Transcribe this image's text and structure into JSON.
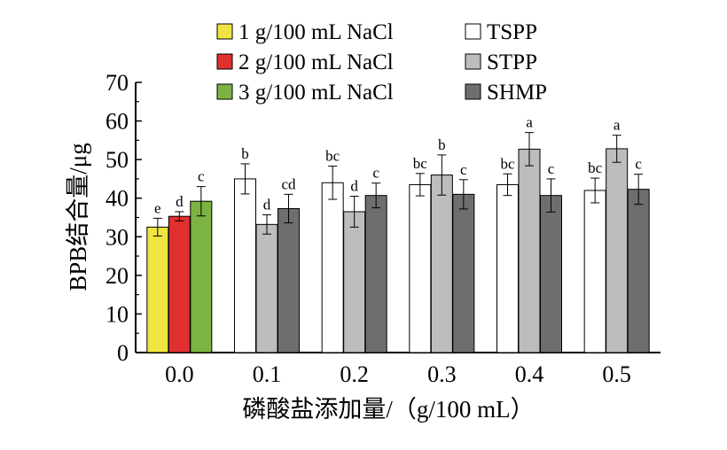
{
  "chart_data": {
    "type": "bar",
    "title": "",
    "xlabel": "磷酸盐添加量/（g/100 mL）",
    "ylabel": "BPB结合量/μg",
    "ylim": [
      0,
      70
    ],
    "yticks": [
      0,
      10,
      20,
      30,
      40,
      50,
      60,
      70
    ],
    "categories": [
      "0.0",
      "0.1",
      "0.2",
      "0.3",
      "0.4",
      "0.5"
    ],
    "grid": false,
    "legend_position": "top",
    "series": [
      {
        "name": "1 g/100 mL NaCl",
        "color": "#f0e442",
        "values": [
          32.5,
          null,
          null,
          null,
          null,
          null
        ],
        "errors": [
          2.3,
          null,
          null,
          null,
          null,
          null
        ],
        "labels": [
          "e",
          "",
          "",
          "",
          "",
          ""
        ]
      },
      {
        "name": "2 g/100 mL NaCl",
        "color": "#e03030",
        "values": [
          35.3,
          null,
          null,
          null,
          null,
          null
        ],
        "errors": [
          1.2,
          null,
          null,
          null,
          null,
          null
        ],
        "labels": [
          "d",
          "",
          "",
          "",
          "",
          ""
        ]
      },
      {
        "name": "3 g/100 mL NaCl",
        "color": "#7cb342",
        "values": [
          39.2,
          null,
          null,
          null,
          null,
          null
        ],
        "errors": [
          3.8,
          null,
          null,
          null,
          null,
          null
        ],
        "labels": [
          "c",
          "",
          "",
          "",
          "",
          ""
        ]
      },
      {
        "name": "TSPP",
        "color": "#ffffff",
        "values": [
          null,
          45.0,
          44.0,
          43.5,
          43.5,
          42.0
        ],
        "errors": [
          null,
          3.9,
          4.3,
          2.9,
          2.8,
          3.2
        ],
        "labels": [
          "",
          "b",
          "bc",
          "bc",
          "bc",
          "bc"
        ]
      },
      {
        "name": "STPP",
        "color": "#bdbdbd",
        "values": [
          null,
          33.2,
          36.5,
          46.0,
          52.7,
          52.8
        ],
        "errors": [
          null,
          2.5,
          4.0,
          5.2,
          4.3,
          3.5
        ],
        "labels": [
          "",
          "d",
          "d",
          "b",
          "a",
          "a"
        ]
      },
      {
        "name": "SHMP",
        "color": "#6e6e6e",
        "values": [
          null,
          37.3,
          40.7,
          41.0,
          40.7,
          42.3
        ],
        "errors": [
          null,
          3.7,
          3.2,
          3.8,
          4.3,
          3.9
        ],
        "labels": [
          "",
          "cd",
          "c",
          "c",
          "c",
          "c"
        ]
      }
    ]
  }
}
